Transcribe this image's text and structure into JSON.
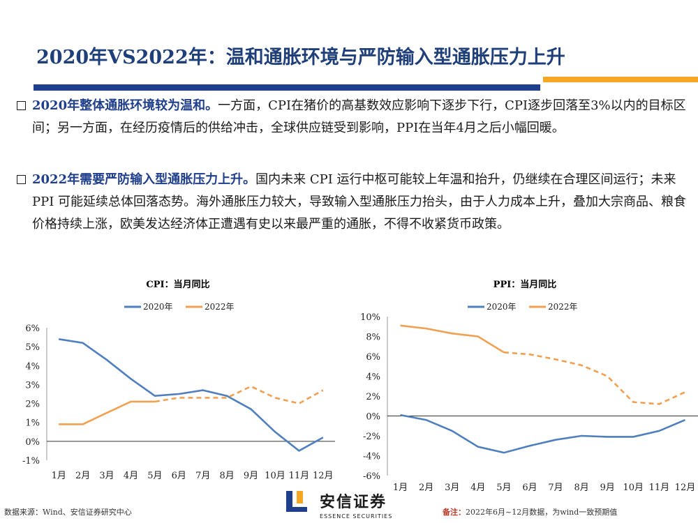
{
  "slide": {
    "title": "2020年VS2022年：温和通胀环境与严防输入型通胀压力上升"
  },
  "points": [
    {
      "lead": "2020年整体通胀环境较为温和。",
      "body": "一方面，CPI在猪价的高基数效应影响下逐步下行，CPI逐步回落至3%以内的目标区间；另一方面，在经历疫情后的供给冲击，全球供应链受到影响，PPI在当年4月之后小幅回暖。"
    },
    {
      "lead": "2022年需要严防输入型通胀压力上升。",
      "body": "国内未来 CPI 运行中枢可能较上年温和抬升，仍继续在合理区间运行；未来PPI 可能延续总体回落态势。海外通胀压力较大，导致输入型通胀压力抬头，由于人力成本上升，叠加大宗商品、粮食价格持续上涨，欧美发达经济体正遭遇有史以来最严重的通胀，不得不收紧货币政策。"
    }
  ],
  "colors": {
    "blue": "#4f7fbf",
    "orange": "#f0a050",
    "title": "#1f3f7a"
  },
  "chart_data": [
    {
      "type": "line",
      "title": "CPI：当月同比",
      "categories": [
        "1月",
        "2月",
        "3月",
        "4月",
        "5月",
        "6月",
        "7月",
        "8月",
        "9月",
        "10月",
        "11月",
        "12月"
      ],
      "series": [
        {
          "name": "2020年",
          "values": [
            5.4,
            5.2,
            4.3,
            3.3,
            2.4,
            2.5,
            2.7,
            2.4,
            1.7,
            0.5,
            -0.5,
            0.2
          ]
        },
        {
          "name": "2022年",
          "values": [
            0.9,
            0.9,
            1.5,
            2.1,
            2.1,
            2.3,
            2.3,
            2.3,
            2.9,
            2.3,
            2.0,
            2.7
          ],
          "dashed_from_index": 5
        }
      ],
      "ylim": [
        -1,
        6
      ],
      "yticks": [
        "-1%",
        "0%",
        "1%",
        "2%",
        "3%",
        "4%",
        "5%",
        "6%"
      ],
      "legend": "top-center"
    },
    {
      "type": "line",
      "title": "PPI：当月同比",
      "categories": [
        "1月",
        "2月",
        "3月",
        "4月",
        "5月",
        "6月",
        "7月",
        "8月",
        "9月",
        "10月",
        "11月",
        "12月"
      ],
      "series": [
        {
          "name": "2020年",
          "values": [
            0.1,
            -0.4,
            -1.5,
            -3.1,
            -3.7,
            -3.0,
            -2.4,
            -2.0,
            -2.1,
            -2.1,
            -1.5,
            -0.4
          ]
        },
        {
          "name": "2022年",
          "values": [
            9.1,
            8.8,
            8.3,
            8.0,
            6.4,
            6.2,
            5.7,
            5.1,
            4.0,
            1.4,
            1.2,
            2.4
          ],
          "dashed_from_index": 5
        }
      ],
      "ylim": [
        -6,
        10
      ],
      "yticks": [
        "-6%",
        "-4%",
        "-2%",
        "0%",
        "2%",
        "4%",
        "6%",
        "8%",
        "10%"
      ],
      "legend": "top-center"
    }
  ],
  "footer": {
    "source": "数据来源：Wind、安信证券研究中心",
    "note_label": "备注：",
    "note_text": "2022年6月~12月数据，为wind一致预期值"
  },
  "logo": {
    "cn": "安信证券",
    "en": "ESSENCE SECURITIES"
  }
}
